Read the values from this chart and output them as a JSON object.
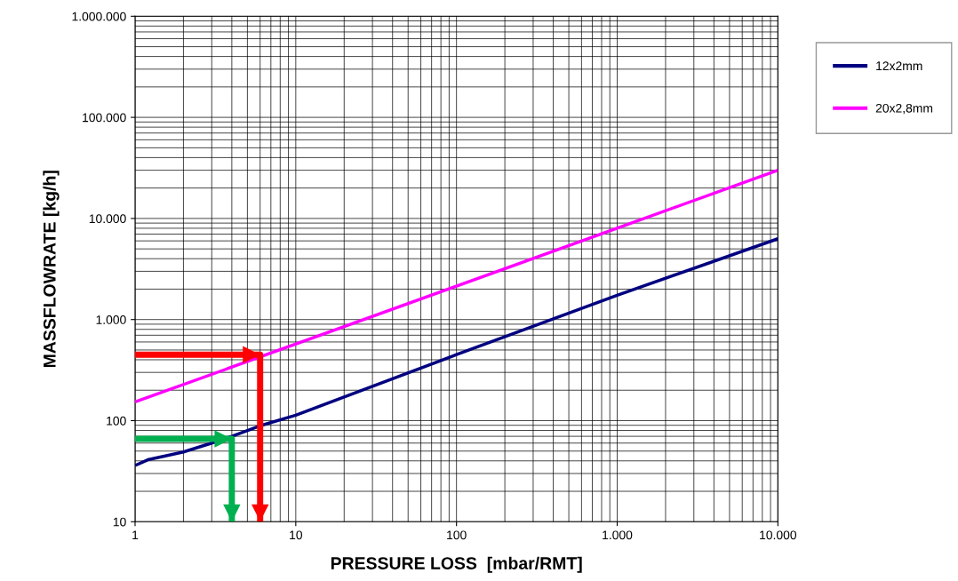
{
  "chart_data": {
    "type": "line",
    "xlabel": "PRESSURE LOSS  [mbar/RMT]",
    "ylabel": "MASSFLOWRATE [kg/h]",
    "log": "xy",
    "grid": true,
    "legend": "top right",
    "xlim": [
      1,
      10000
    ],
    "xticks": [
      1,
      10,
      100,
      {
        "value": 1000,
        "label": "1.000"
      },
      {
        "value": 10000,
        "label": "10.000"
      }
    ],
    "ylim": [
      10,
      1000000
    ],
    "yticks": [
      10,
      100,
      {
        "value": 1000,
        "label": "1.000"
      },
      {
        "value": 10000,
        "label": "10.000"
      },
      {
        "value": 100000,
        "label": "100.000"
      },
      {
        "value": 1000000,
        "label": "1.000.000"
      }
    ],
    "series": [
      {
        "name": "12x2mm",
        "color": "#000080",
        "x": [
          1,
          1.2,
          2,
          3,
          4,
          6,
          10,
          100,
          1000,
          10000
        ],
        "values": [
          36,
          41,
          49,
          60,
          70,
          89,
          113,
          450,
          1740,
          6300
        ]
      },
      {
        "name": "20x2,8mm",
        "color": "#ff00ff",
        "x": [
          1,
          10000
        ],
        "values": [
          153,
          30000
        ]
      },
      {
        "color": "#ff0000",
        "x": [
          1,
          6,
          6
        ],
        "values": [
          450,
          450,
          10
        ]
      },
      {
        "color": "#00b050",
        "x": [
          1,
          4,
          4
        ],
        "values": [
          66,
          66,
          10
        ]
      }
    ]
  }
}
